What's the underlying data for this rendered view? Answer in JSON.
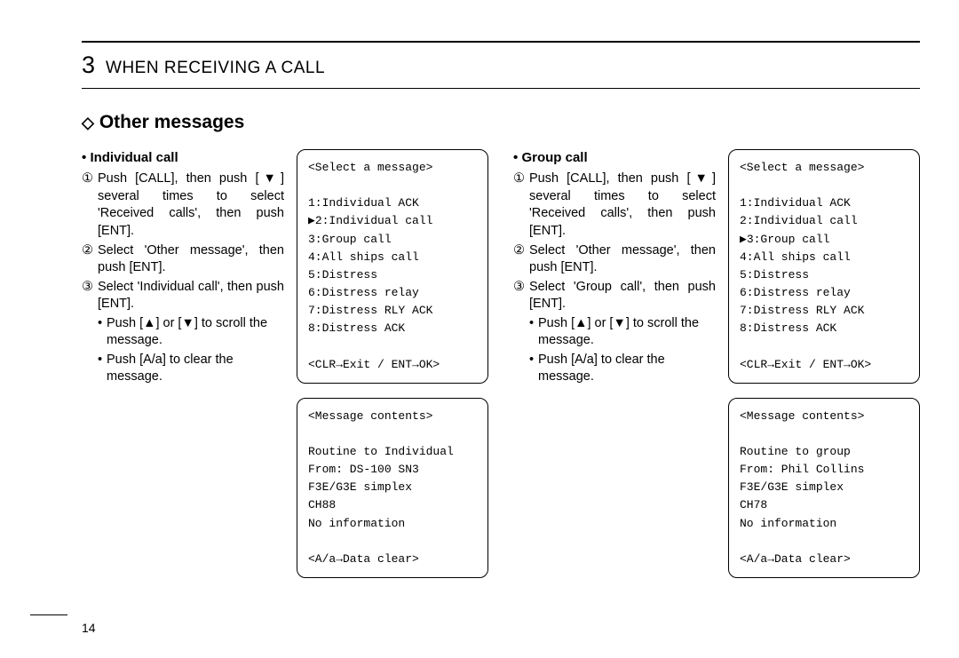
{
  "chapter_number": "3",
  "chapter_title": "WHEN RECEIVING A CALL",
  "section_diamond": "◇",
  "section_title": "Other messages",
  "page_number": "14",
  "left": {
    "subhead_bullet": "•",
    "subhead": "Individual call",
    "steps": {
      "s1_num": "①",
      "s1": "Push [CALL], then push [▼] several times to select 'Received calls', then push [ENT].",
      "s2_num": "②",
      "s2": "Select 'Other message', then push [ENT].",
      "s3_num": "③",
      "s3": "Select 'Individual call', then push [ENT]."
    },
    "bullets": {
      "b1_mark": "•",
      "b1": "Push [▲] or [▼] to scroll the message.",
      "b2_mark": "•",
      "b2": "Push [A/a] to clear the message."
    },
    "lcd1": "<Select a message>\n\n1:Individual ACK\n▶2:Individual call\n3:Group call\n4:All ships call\n5:Distress\n6:Distress relay\n7:Distress RLY ACK\n8:Distress ACK\n\n<CLR→Exit / ENT→OK>",
    "lcd2": "<Message contents>\n\nRoutine to Individual\nFrom: DS-100 SN3\nF3E/G3E simplex\nCH88\nNo information\n\n<A/a→Data clear>"
  },
  "right": {
    "subhead_bullet": "•",
    "subhead": "Group call",
    "steps": {
      "s1_num": "①",
      "s1": "Push [CALL], then push [▼] several times to select 'Received calls', then push [ENT].",
      "s2_num": "②",
      "s2": "Select 'Other message', then push [ENT].",
      "s3_num": "③",
      "s3": "Select 'Group call', then push [ENT]."
    },
    "bullets": {
      "b1_mark": "•",
      "b1": "Push [▲] or [▼] to scroll the message.",
      "b2_mark": "•",
      "b2": "Push [A/a] to clear the message."
    },
    "lcd1": "<Select a message>\n\n1:Individual ACK\n2:Individual call\n▶3:Group call\n4:All ships call\n5:Distress\n6:Distress relay\n7:Distress RLY ACK\n8:Distress ACK\n\n<CLR→Exit / ENT→OK>",
    "lcd2": "<Message contents>\n\nRoutine to group\nFrom: Phil Collins\nF3E/G3E simplex\nCH78\nNo information\n\n<A/a→Data clear>"
  }
}
